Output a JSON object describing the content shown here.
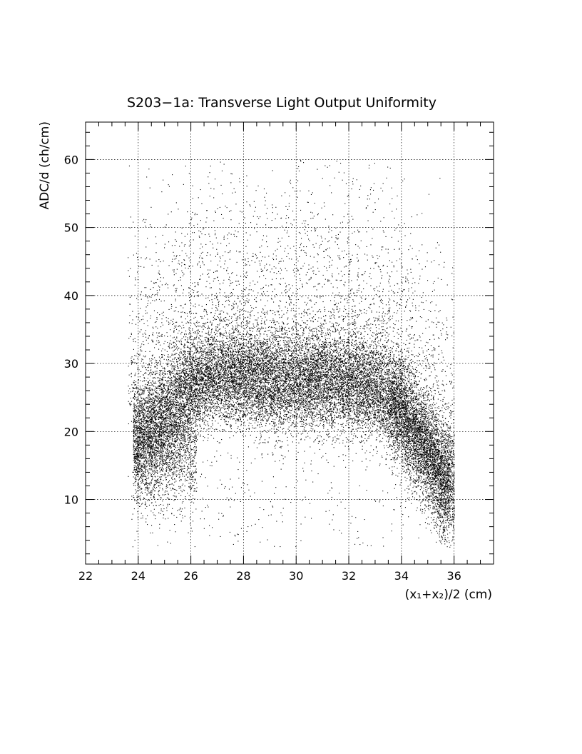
{
  "chart_data": {
    "type": "scatter",
    "title": "S203−1a: Transverse Light Output Uniformity",
    "xlabel": "(x₁+x₂)/2 (cm)",
    "ylabel": "ADC/d (ch/cm)",
    "xlim": [
      22,
      37.5
    ],
    "ylim": [
      0.5,
      65.5
    ],
    "x_ticks": [
      22,
      24,
      26,
      28,
      30,
      32,
      34,
      36
    ],
    "y_ticks": [
      10,
      20,
      30,
      40,
      50,
      60
    ],
    "x_minor_step": 0.5,
    "y_minor_step": 2,
    "grid": true,
    "legend": "none",
    "point_color": "#000000",
    "density_profile": {
      "x_range": [
        23.5,
        36
      ],
      "core_y_range": [
        20,
        35
      ],
      "core_center_y": 27,
      "tail_y_range": [
        3,
        60
      ],
      "left_lobe": {
        "x": [
          23.5,
          26
        ],
        "y": [
          10,
          25
        ]
      },
      "right_lobe": {
        "x": [
          34,
          36
        ],
        "y": [
          10,
          25
        ]
      },
      "summary": [
        {
          "x": 24,
          "y_center": 19
        },
        {
          "x": 25,
          "y_center": 22
        },
        {
          "x": 26,
          "y_center": 27
        },
        {
          "x": 27,
          "y_center": 28
        },
        {
          "x": 28,
          "y_center": 28
        },
        {
          "x": 29,
          "y_center": 27.5
        },
        {
          "x": 30,
          "y_center": 27.5
        },
        {
          "x": 31,
          "y_center": 27.5
        },
        {
          "x": 32,
          "y_center": 27
        },
        {
          "x": 33,
          "y_center": 26.5
        },
        {
          "x": 34,
          "y_center": 23
        },
        {
          "x": 35,
          "y_center": 17
        },
        {
          "x": 35.5,
          "y_center": 13
        }
      ]
    }
  }
}
